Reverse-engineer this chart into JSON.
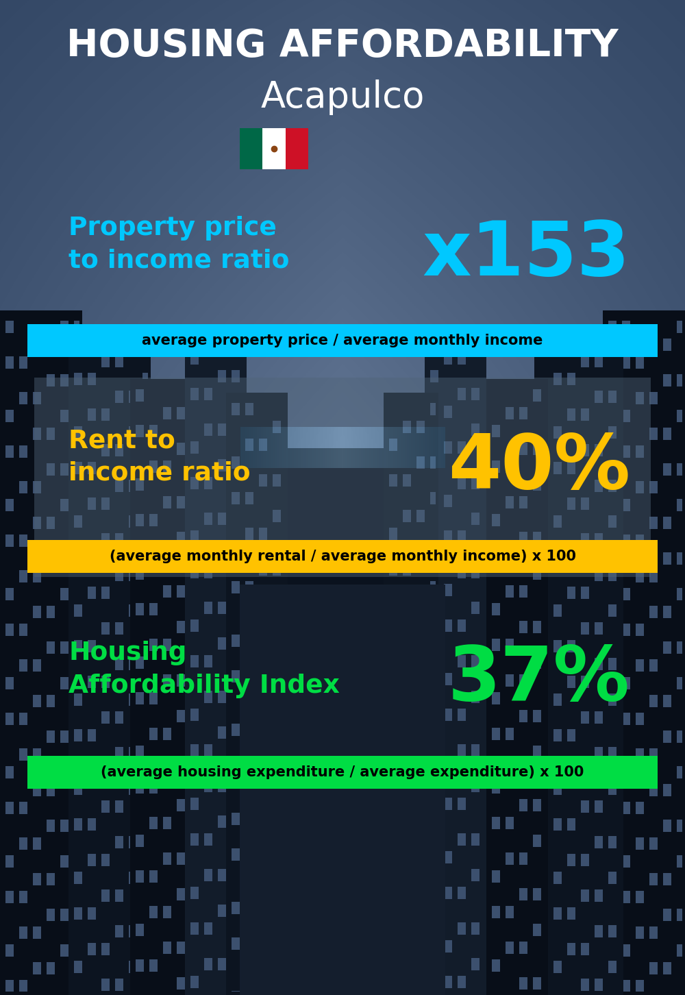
{
  "title_line1": "HOUSING AFFORDABILITY",
  "title_line2": "Acapulco",
  "bg_color": "#0a1520",
  "section1_label": "Property price\nto income ratio",
  "section1_value": "x153",
  "section1_label_color": "#00c8ff",
  "section1_value_color": "#00c8ff",
  "section1_banner": "average property price / average monthly income",
  "section1_banner_bg": "#00c8ff",
  "section2_label": "Rent to\nincome ratio",
  "section2_value": "40%",
  "section2_label_color": "#ffc200",
  "section2_value_color": "#ffc200",
  "section2_banner": "(average monthly rental / average monthly income) x 100",
  "section2_banner_bg": "#ffc200",
  "section3_label": "Housing\nAffordability Index",
  "section3_value": "37%",
  "section3_label_color": "#00dd44",
  "section3_value_color": "#00dd44",
  "section3_banner": "(average housing expenditure / average expenditure) x 100",
  "section3_banner_bg": "#00dd44",
  "title_color": "#ffffff",
  "title_fontsize": 40,
  "subtitle_fontsize": 38,
  "label_fontsize": 27,
  "value_fontsize": 80,
  "banner_fontsize": 15,
  "flag_green": "#006847",
  "flag_white": "#ffffff",
  "flag_red": "#ce1126"
}
